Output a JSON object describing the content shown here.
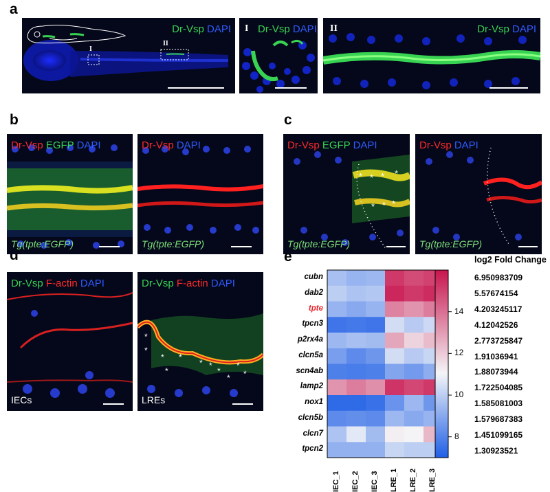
{
  "panels": {
    "a": "a",
    "b": "b",
    "c": "c",
    "d": "d",
    "e": "e"
  },
  "panel_a": {
    "main": {
      "ch1": "Dr-Vsp",
      "ch2": "DAPI",
      "roi1": "I",
      "roi2": "II"
    },
    "inset1": {
      "roman": "I",
      "ch1": "Dr-Vsp",
      "ch2": "DAPI"
    },
    "inset2": {
      "roman": "II",
      "ch1": "Dr-Vsp",
      "ch2": "DAPI"
    }
  },
  "panel_b": {
    "left": {
      "ch1": "Dr-Vsp",
      "ch2": "EGFP",
      "ch3": "DAPI",
      "tg": "Tg(tpte:EGFP)"
    },
    "right": {
      "ch1": "Dr-Vsp",
      "ch2": "DAPI",
      "tg": "Tg(tpte:EGFP)"
    }
  },
  "panel_c": {
    "left": {
      "ch1": "Dr-Vsp",
      "ch2": "EGFP",
      "ch3": "DAPI",
      "tg": "Tg(tpte:EGFP)"
    },
    "right": {
      "ch1": "Dr-Vsp",
      "ch2": "DAPI",
      "tg": "Tg(tpte:EGFP)"
    }
  },
  "panel_d": {
    "left": {
      "ch1": "Dr-Vsp",
      "ch2": "F-actin",
      "ch3": "DAPI",
      "bottom": "IECs"
    },
    "right": {
      "ch1": "Dr-Vsp",
      "ch2": "F-actin",
      "ch3": "DAPI",
      "bottom": "LREs"
    }
  },
  "colors": {
    "green_label": "#39d353",
    "red_label": "#ff2a2a",
    "blue_label": "#2f5bff",
    "tpte_highlight": "#e8232a",
    "heat_low": "#1f5fe6",
    "heat_mid": "#f4f5f7",
    "heat_high": "#c8154e"
  },
  "chart_data": {
    "type": "heatmap",
    "rows": [
      "cubn",
      "dab2",
      "tpte",
      "tpcn3",
      "p2rx4a",
      "clcn5a",
      "scn4ab",
      "lamp2",
      "nox1",
      "clcn5b",
      "clcn7",
      "tpcn2"
    ],
    "highlight_row": "tpte",
    "columns": [
      "IEC_1",
      "IEC_2",
      "IEC_3",
      "LRE_1",
      "LRE_2",
      "LRE_3"
    ],
    "values": [
      [
        9.6,
        9.3,
        9.4,
        15.2,
        14.8,
        15.0
      ],
      [
        10.0,
        9.7,
        9.8,
        15.6,
        15.2,
        15.5
      ],
      [
        9.3,
        9.0,
        9.3,
        13.6,
        13.2,
        13.7
      ],
      [
        7.6,
        7.7,
        7.6,
        10.4,
        9.9,
        10.3
      ],
      [
        9.4,
        9.6,
        9.5,
        12.8,
        11.8,
        12.3
      ],
      [
        8.7,
        8.2,
        8.5,
        10.4,
        9.9,
        10.2
      ],
      [
        7.9,
        7.8,
        7.9,
        8.9,
        8.6,
        9.1
      ],
      [
        13.2,
        13.7,
        13.3,
        15.3,
        14.9,
        15.2
      ],
      [
        7.3,
        7.3,
        7.5,
        8.4,
        9.4,
        8.5
      ],
      [
        8.2,
        8.3,
        8.2,
        9.4,
        9.0,
        9.3
      ],
      [
        9.7,
        10.7,
        9.5,
        11.2,
        11.1,
        12.4
      ],
      [
        9.2,
        9.2,
        9.2,
        10.2,
        10.0,
        10.0
      ]
    ],
    "colorbar": {
      "min": 7,
      "max": 16,
      "ticks": [
        8,
        10,
        12,
        14
      ]
    },
    "fold_change_title": "log2 Fold Change",
    "fold_change": [
      "6.950983709",
      "5.57674154",
      "4.203245117",
      "4.12042526",
      "2.773725847",
      "1.91036941",
      "1.88073944",
      "1.722504085",
      "1.585081003",
      "1.579687383",
      "1.451099165",
      "1.30923521"
    ]
  }
}
